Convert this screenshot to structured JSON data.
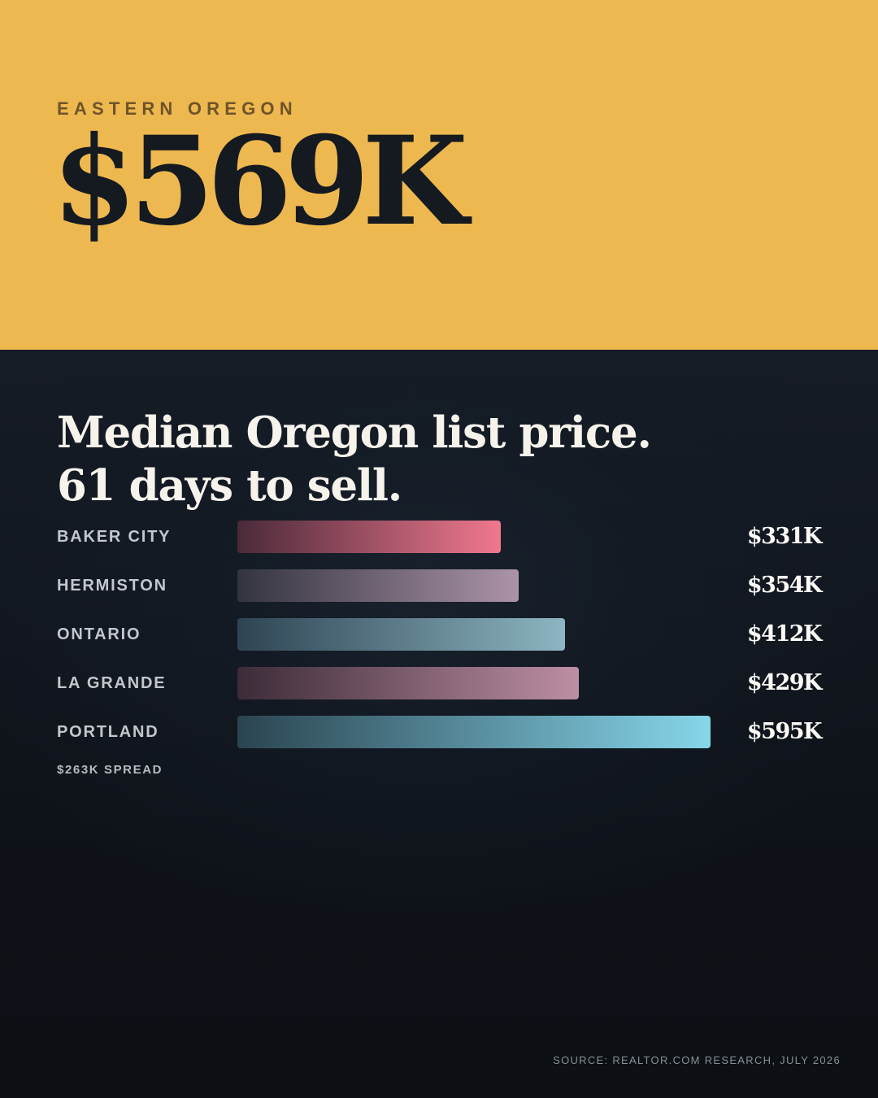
{
  "header": {
    "eyebrow": "EASTERN OREGON",
    "hero_value": "$569K"
  },
  "headline": "Median Oregon list price. 61 days to sell.",
  "chart_data": {
    "type": "bar",
    "orientation": "horizontal",
    "categories": [
      "BAKER CITY",
      "HERMISTON",
      "ONTARIO",
      "LA GRANDE",
      "PORTLAND"
    ],
    "values": [
      331,
      354,
      412,
      429,
      595
    ],
    "value_labels": [
      "$331K",
      "$354K",
      "$412K",
      "$429K",
      "$595K"
    ],
    "unit": "$K",
    "xlim": [
      0,
      595
    ],
    "grid": false,
    "colors": [
      [
        "#4a2a39",
        "#f0788e"
      ],
      [
        "#33343f",
        "#ab94a6"
      ],
      [
        "#2e4453",
        "#8db5c2"
      ],
      [
        "#3c2b38",
        "#bd8fa3"
      ],
      [
        "#2a4450",
        "#86d6ea"
      ]
    ]
  },
  "footer": {
    "spread": "$263K SPREAD",
    "source": "SOURCE: REALTOR.COM RESEARCH, JULY 2026"
  },
  "colors": {
    "header_background": "#eeb850",
    "body_background": "#0e1219",
    "hero_text": "#141a20",
    "headline_text": "#f6f3ec"
  }
}
